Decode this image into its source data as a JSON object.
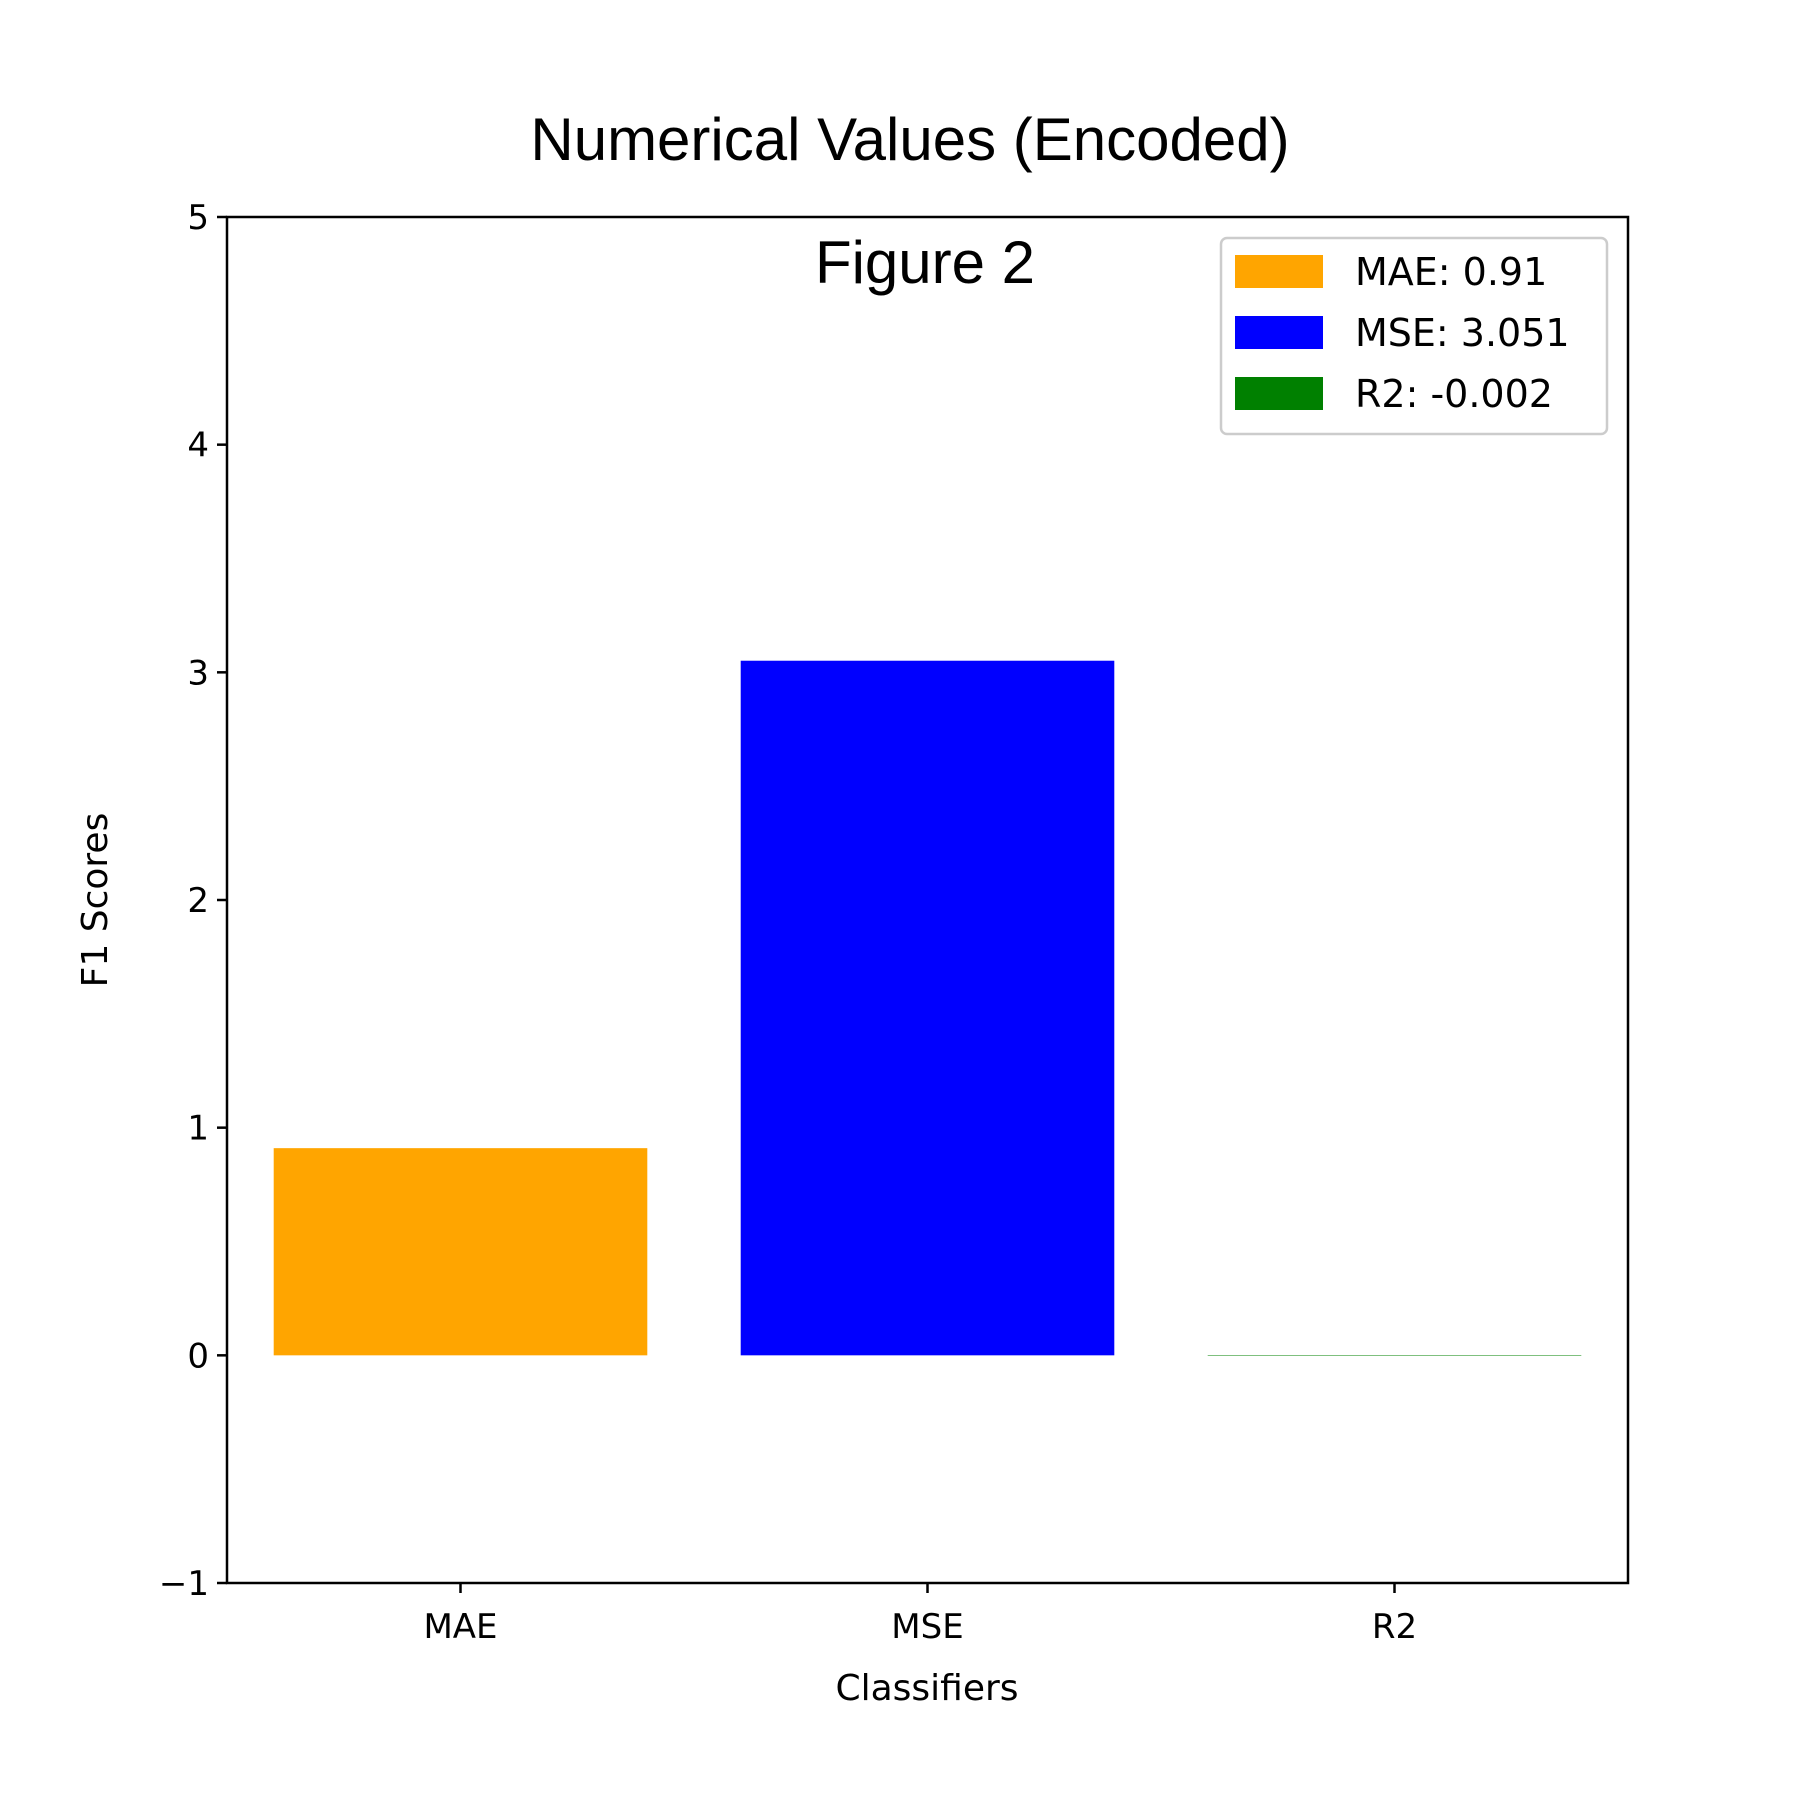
{
  "chart_data": {
    "type": "bar",
    "title": "Numerical Values (Encoded)",
    "annotation": "Figure 2",
    "xlabel": "Classifiers",
    "ylabel": "F1 Scores",
    "categories": [
      "MAE",
      "MSE",
      "R2"
    ],
    "values": [
      0.91,
      3.051,
      -0.002
    ],
    "colors": [
      "#ffa500",
      "#0000ff",
      "#008000"
    ],
    "ylim": [
      -1,
      5
    ],
    "yticks": [
      -1,
      0,
      1,
      2,
      3,
      4,
      5
    ],
    "ytick_labels": [
      "−1",
      "0",
      "1",
      "2",
      "3",
      "4",
      "5"
    ],
    "grid": false,
    "legend": {
      "placement": "top-right",
      "entries": [
        "MAE: 0.91",
        "MSE: 3.051",
        "R2: -0.002"
      ]
    }
  }
}
